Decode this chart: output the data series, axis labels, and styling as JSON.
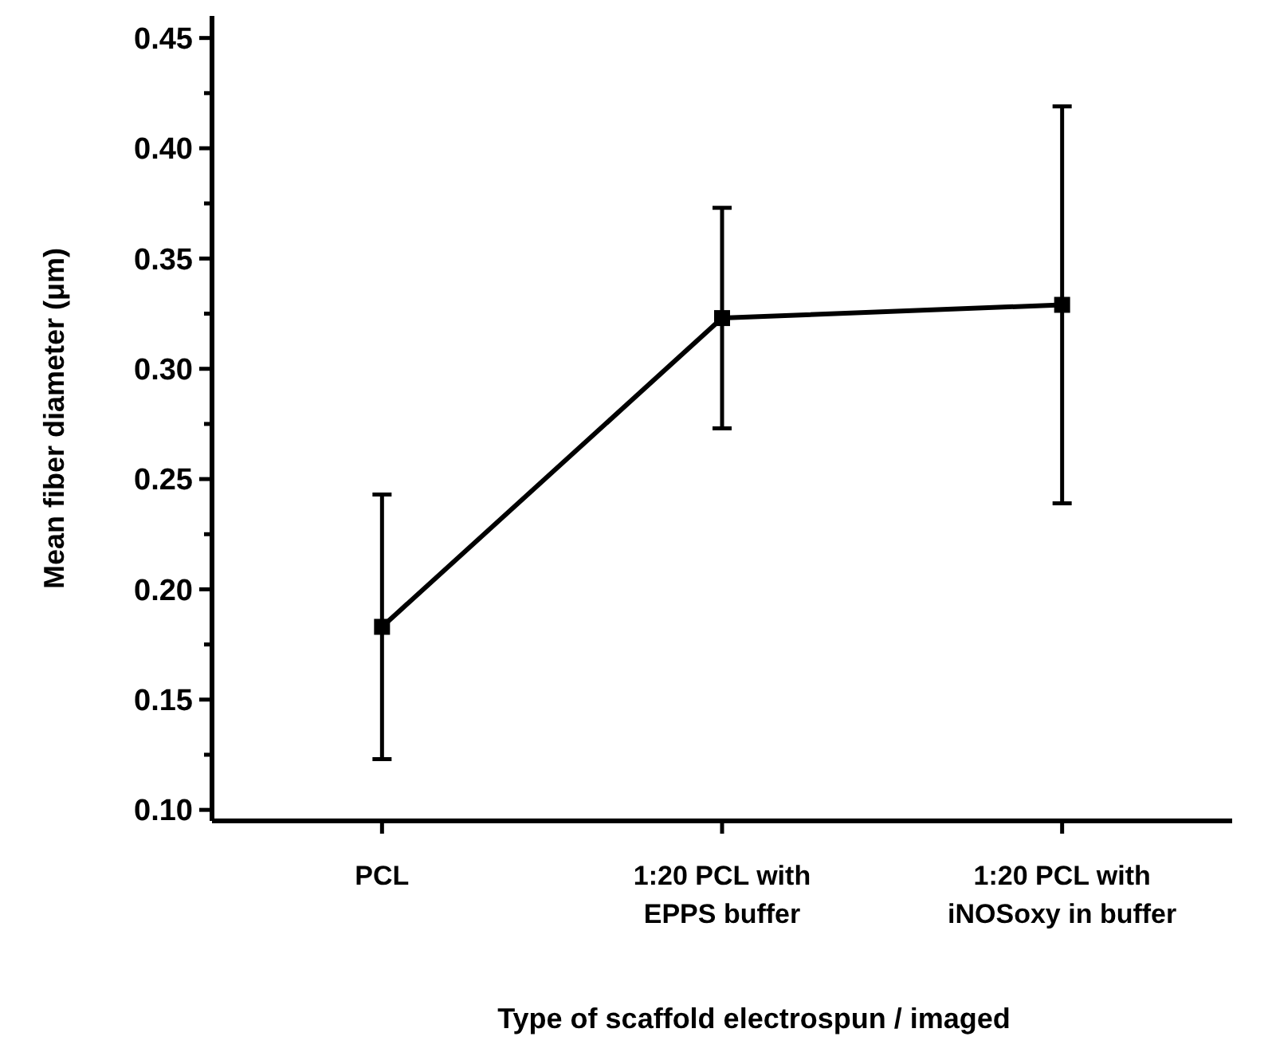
{
  "chart_data": {
    "type": "line",
    "xlabel": "Type of scaffold electrospun / imaged",
    "ylabel": "Mean fiber diameter (μm)",
    "categories": [
      "PCL",
      "1:20 PCL with\nEPPS buffer",
      "1:20 PCL with\niNOSoxy in buffer"
    ],
    "series": [
      {
        "color": "#000000",
        "values": [
          0.183,
          0.323,
          0.329
        ],
        "errors": [
          0.06,
          0.05,
          0.09
        ]
      }
    ],
    "marker": "square",
    "line_style": "solid",
    "grid": false,
    "ylim": [
      0.095,
      0.46
    ],
    "yticks": [
      {
        "value": 0.1,
        "label": "0.10"
      },
      {
        "value": 0.125,
        "label": null
      },
      0.15,
      {
        "value": 0.175,
        "label": null
      },
      {
        "value": 0.2,
        "label": "0.20"
      },
      {
        "value": 0.225,
        "label": null
      },
      0.25,
      {
        "value": 0.275,
        "label": null
      },
      {
        "value": 0.3,
        "label": "0.30"
      },
      {
        "value": 0.325,
        "label": null
      },
      0.35,
      {
        "value": 0.375,
        "label": null
      },
      {
        "value": 0.4,
        "label": "0.40"
      },
      {
        "value": 0.425,
        "label": null
      },
      0.45
    ]
  }
}
